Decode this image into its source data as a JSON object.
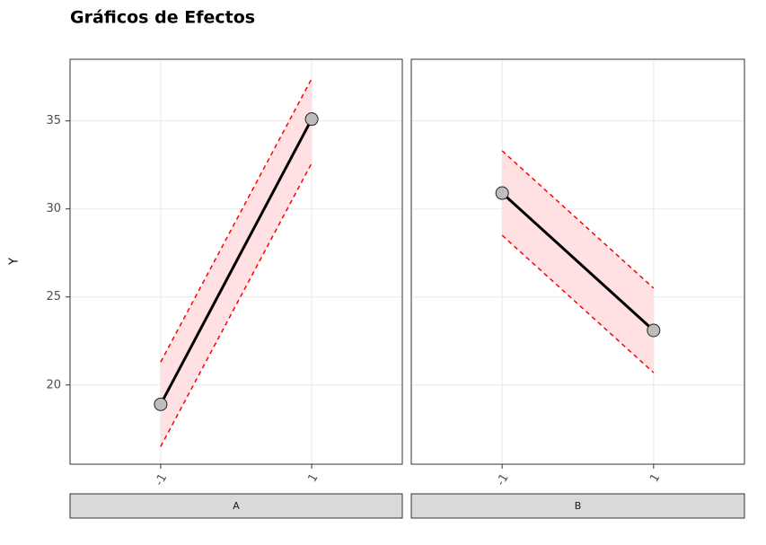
{
  "chart_data": {
    "type": "line",
    "title": "Gráficos de Efectos",
    "y_label": "Y",
    "categories": [
      "-1",
      "1"
    ],
    "ylim": [
      15.5,
      38.5
    ],
    "yticks": [
      20,
      25,
      30,
      35
    ],
    "grid": true,
    "line_color": "#000000",
    "point_color": "#bdbdbd",
    "band_color": "#ffe0e3",
    "bound_color": "#ff0000",
    "facets": [
      {
        "name": "A",
        "values": [
          18.9,
          35.1
        ],
        "lower": [
          16.5,
          32.6
        ],
        "upper": [
          21.3,
          37.4
        ]
      },
      {
        "name": "B",
        "values": [
          30.9,
          23.1
        ],
        "lower": [
          28.5,
          20.7
        ],
        "upper": [
          33.3,
          25.5
        ]
      }
    ]
  }
}
